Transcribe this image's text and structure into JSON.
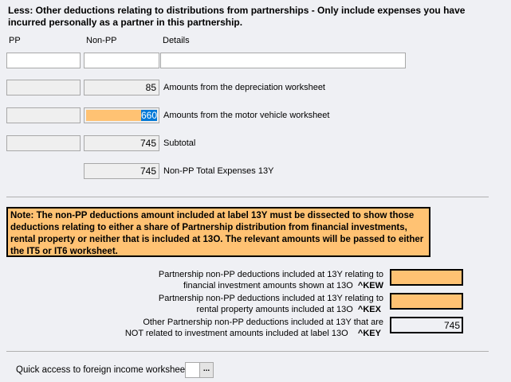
{
  "heading": "Less: Other deductions relating to distributions from partnerships - Only include expenses you have incurred personally as a partner in this partnership.",
  "columns": {
    "pp": "PP",
    "non_pp": "Non-PP",
    "details": "Details"
  },
  "rows": [
    {
      "pp": "",
      "non_pp": "85",
      "label": "Amounts from the depreciation worksheet"
    },
    {
      "pp": "",
      "non_pp": "660",
      "label": "Amounts from the motor vehicle worksheet"
    },
    {
      "pp": "",
      "non_pp": "745",
      "label": "Subtotal"
    },
    {
      "non_pp": "745",
      "label": "Non-PP Total Expenses 13Y"
    }
  ],
  "note": "Note: The non-PP deductions amount included at label 13Y must be dissected to show those deductions relating to either a share of Partnership distribution from financial investments, rental property or neither that is included at 13O. The relevant amounts will be passed to either the IT5 or IT6 worksheet.",
  "dissection": [
    {
      "line1": "Partnership non-PP deductions included at 13Y relating to",
      "line2": "financial investment amounts shown at 13O",
      "code": "^KEW",
      "value": ""
    },
    {
      "line1": "Partnership non-PP deductions included at 13Y relating to",
      "line2": "rental property amounts included at 13O",
      "code": "^KEX",
      "value": ""
    },
    {
      "line1": "Other Partnership non-PP deductions included at 13Y that are",
      "line2": "NOT related to investment amounts included at label 13O",
      "code": "^KEY",
      "value": "745"
    }
  ],
  "quick_access": {
    "label": "Quick access to foreign income worksheet",
    "button": "..."
  },
  "colors": {
    "highlight": "#ffc273",
    "selection": "#0078d7",
    "background": "#eff0f4"
  }
}
